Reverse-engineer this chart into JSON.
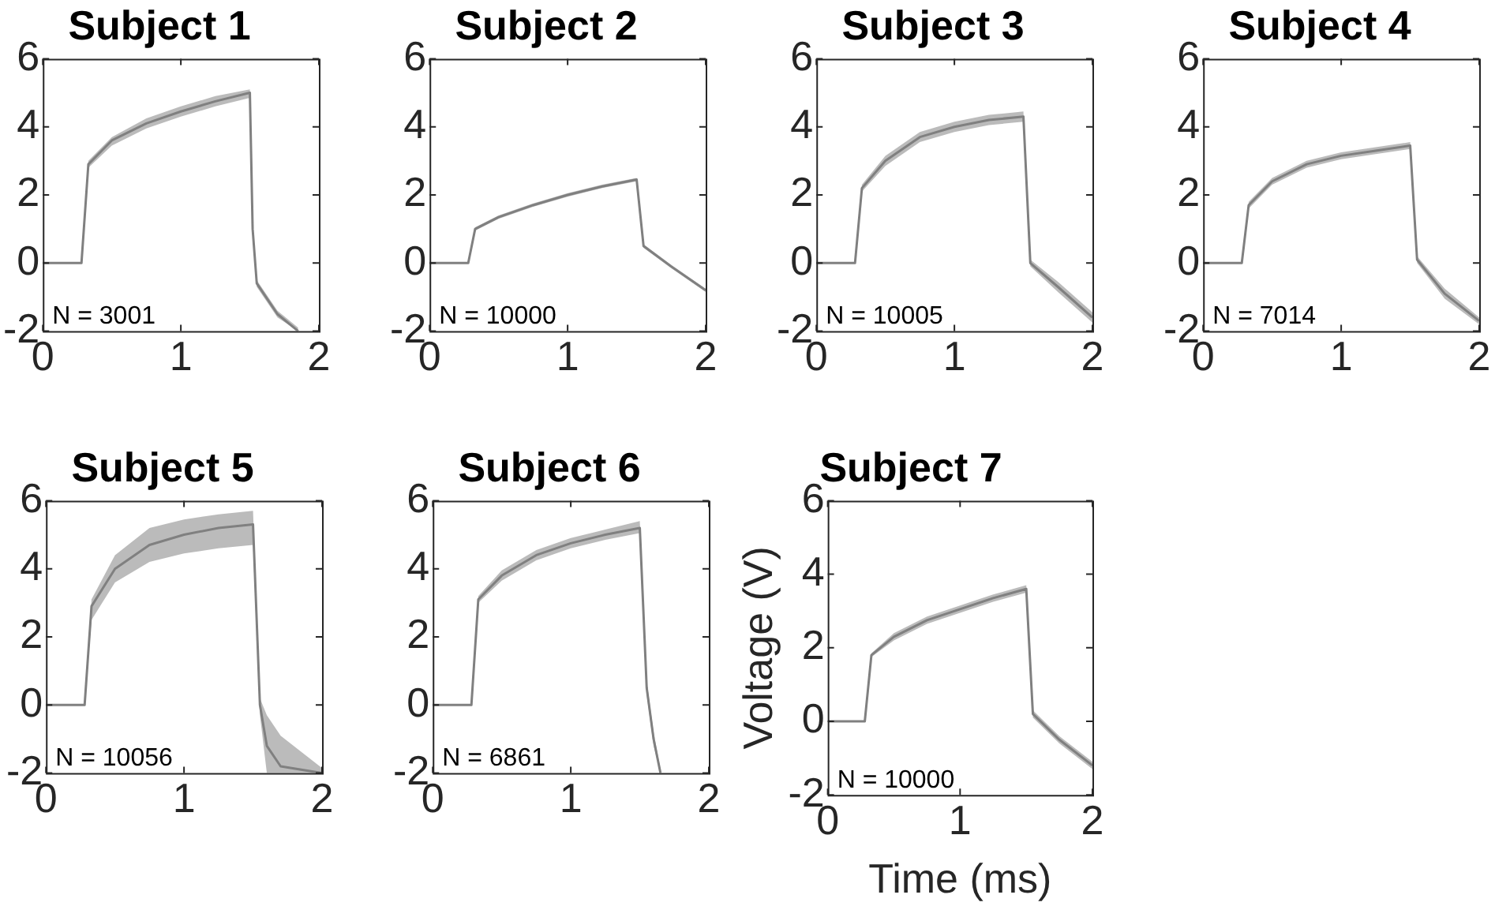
{
  "chart_data": [
    {
      "type": "line",
      "title": "Subject 1",
      "xlim": [
        0,
        2
      ],
      "xticks": [
        0,
        1,
        2
      ],
      "ylim": [
        -2,
        6
      ],
      "yticks": [
        -2,
        0,
        2,
        4,
        6
      ],
      "grid": false,
      "annotations": [
        "N = 3001"
      ],
      "series": [
        {
          "color": "#808080",
          "x": [
            0,
            0.28,
            0.33,
            0.5,
            0.75,
            1.0,
            1.25,
            1.5,
            1.52,
            1.55,
            1.7,
            1.85
          ],
          "values": [
            0,
            0,
            2.9,
            3.6,
            4.1,
            4.45,
            4.75,
            5.0,
            1.0,
            -0.6,
            -1.5,
            -2
          ],
          "lower": [
            0,
            0,
            2.8,
            3.45,
            3.95,
            4.3,
            4.6,
            4.85,
            0.8,
            -0.7,
            -1.6,
            -2
          ],
          "upper": [
            0,
            0,
            3.0,
            3.7,
            4.25,
            4.6,
            4.9,
            5.1,
            1.2,
            -0.5,
            -1.4,
            -1.9
          ]
        }
      ]
    },
    {
      "type": "line",
      "title": "Subject 2",
      "xlim": [
        0,
        2
      ],
      "xticks": [
        0,
        1,
        2
      ],
      "ylim": [
        -2,
        6
      ],
      "yticks": [
        -2,
        0,
        2,
        4,
        6
      ],
      "grid": false,
      "annotations": [
        "N = 10000"
      ],
      "series": [
        {
          "color": "#808080",
          "x": [
            0,
            0.28,
            0.33,
            0.5,
            0.75,
            1.0,
            1.25,
            1.5,
            1.55,
            1.75,
            2.0
          ],
          "values": [
            0,
            0,
            1.0,
            1.35,
            1.7,
            2.0,
            2.25,
            2.45,
            0.5,
            -0.1,
            -0.8
          ],
          "lower": [
            0,
            0,
            0.95,
            1.3,
            1.65,
            1.95,
            2.2,
            2.4,
            0.45,
            -0.15,
            -0.85
          ],
          "upper": [
            0,
            0,
            1.05,
            1.4,
            1.75,
            2.05,
            2.3,
            2.5,
            0.55,
            -0.05,
            -0.75
          ]
        }
      ]
    },
    {
      "type": "line",
      "title": "Subject 3",
      "xlim": [
        0,
        2
      ],
      "xticks": [
        0,
        1,
        2
      ],
      "ylim": [
        -2,
        6
      ],
      "yticks": [
        -2,
        0,
        2,
        4,
        6
      ],
      "grid": false,
      "annotations": [
        "N = 10005"
      ],
      "series": [
        {
          "color": "#808080",
          "x": [
            0,
            0.28,
            0.33,
            0.5,
            0.75,
            1.0,
            1.25,
            1.5,
            1.55,
            1.75,
            2.0
          ],
          "values": [
            0,
            0,
            2.2,
            3.0,
            3.7,
            4.0,
            4.2,
            4.3,
            0.0,
            -0.7,
            -1.6
          ],
          "lower": [
            0,
            0,
            2.1,
            2.85,
            3.55,
            3.85,
            4.05,
            4.15,
            -0.1,
            -0.85,
            -1.75
          ],
          "upper": [
            0,
            0,
            2.3,
            3.15,
            3.85,
            4.15,
            4.35,
            4.45,
            0.1,
            -0.55,
            -1.45
          ]
        }
      ]
    },
    {
      "type": "line",
      "title": "Subject 4",
      "xlim": [
        0,
        2
      ],
      "xticks": [
        0,
        1,
        2
      ],
      "ylim": [
        -2,
        6
      ],
      "yticks": [
        -2,
        0,
        2,
        4,
        6
      ],
      "grid": false,
      "annotations": [
        "N = 7014"
      ],
      "series": [
        {
          "color": "#808080",
          "x": [
            0,
            0.28,
            0.33,
            0.5,
            0.75,
            1.0,
            1.25,
            1.5,
            1.55,
            1.75,
            2.0
          ],
          "values": [
            0,
            0,
            1.7,
            2.4,
            2.9,
            3.15,
            3.3,
            3.45,
            0.1,
            -0.9,
            -1.7
          ],
          "lower": [
            0,
            0,
            1.6,
            2.3,
            2.8,
            3.05,
            3.2,
            3.35,
            0.0,
            -1.05,
            -1.8
          ],
          "upper": [
            0,
            0,
            1.8,
            2.5,
            3.0,
            3.25,
            3.4,
            3.55,
            0.2,
            -0.75,
            -1.6
          ]
        }
      ]
    },
    {
      "type": "line",
      "title": "Subject 5",
      "xlim": [
        0,
        2
      ],
      "xticks": [
        0,
        1,
        2
      ],
      "ylim": [
        -2,
        6
      ],
      "yticks": [
        -2,
        0,
        2,
        4,
        6
      ],
      "grid": false,
      "annotations": [
        "N = 10056"
      ],
      "series": [
        {
          "color": "#808080",
          "x": [
            0,
            0.28,
            0.33,
            0.5,
            0.75,
            1.0,
            1.25,
            1.5,
            1.55,
            1.6,
            1.7,
            2.0
          ],
          "values": [
            0,
            0,
            2.9,
            4.0,
            4.7,
            5.0,
            5.2,
            5.3,
            0.0,
            -1.2,
            -1.8,
            -2
          ],
          "lower": [
            0,
            0,
            2.5,
            3.6,
            4.2,
            4.45,
            4.6,
            4.7,
            -0.3,
            -2,
            -2,
            -2
          ],
          "upper": [
            0,
            0,
            3.1,
            4.4,
            5.2,
            5.45,
            5.6,
            5.7,
            0.2,
            -0.3,
            -0.9,
            -1.85
          ]
        }
      ]
    },
    {
      "type": "line",
      "title": "Subject 6",
      "xlim": [
        0,
        2
      ],
      "xticks": [
        0,
        1,
        2
      ],
      "ylim": [
        -2,
        6
      ],
      "yticks": [
        -2,
        0,
        2,
        4,
        6
      ],
      "grid": false,
      "annotations": [
        "N = 6861"
      ],
      "series": [
        {
          "color": "#808080",
          "x": [
            0,
            0.28,
            0.33,
            0.5,
            0.75,
            1.0,
            1.25,
            1.5,
            1.55,
            1.6,
            1.65
          ],
          "values": [
            0,
            0,
            3.1,
            3.8,
            4.4,
            4.75,
            5.0,
            5.2,
            0.5,
            -1.0,
            -2
          ],
          "lower": [
            0,
            0,
            3.0,
            3.65,
            4.25,
            4.6,
            4.85,
            5.05,
            0.3,
            -1.2,
            -2
          ],
          "upper": [
            0,
            0,
            3.2,
            3.95,
            4.55,
            4.9,
            5.15,
            5.4,
            0.7,
            -0.8,
            -1.9
          ]
        }
      ]
    },
    {
      "type": "line",
      "title": "Subject 7",
      "xlabel": "Time (ms)",
      "ylabel": "Voltage (V)",
      "xlim": [
        0,
        2
      ],
      "xticks": [
        0,
        1,
        2
      ],
      "ylim": [
        -2,
        6
      ],
      "yticks": [
        -2,
        0,
        2,
        4,
        6
      ],
      "grid": false,
      "annotations": [
        "N = 10000"
      ],
      "series": [
        {
          "color": "#808080",
          "x": [
            0,
            0.28,
            0.33,
            0.5,
            0.75,
            1.0,
            1.25,
            1.5,
            1.55,
            1.75,
            2.0
          ],
          "values": [
            0,
            0,
            1.8,
            2.3,
            2.75,
            3.05,
            3.35,
            3.6,
            0.2,
            -0.5,
            -1.2
          ],
          "lower": [
            0,
            0,
            1.75,
            2.2,
            2.65,
            2.95,
            3.25,
            3.5,
            0.1,
            -0.6,
            -1.3
          ],
          "upper": [
            0,
            0,
            1.85,
            2.4,
            2.85,
            3.15,
            3.45,
            3.7,
            0.3,
            -0.4,
            -1.1
          ]
        }
      ]
    }
  ]
}
